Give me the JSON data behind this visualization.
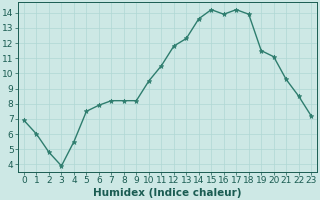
{
  "x": [
    0,
    1,
    2,
    3,
    4,
    5,
    6,
    7,
    8,
    9,
    10,
    11,
    12,
    13,
    14,
    15,
    16,
    17,
    18,
    19,
    20,
    21,
    22,
    23
  ],
  "y": [
    6.9,
    6.0,
    4.8,
    3.9,
    5.5,
    7.5,
    7.9,
    8.2,
    8.2,
    8.2,
    9.5,
    10.5,
    11.8,
    12.3,
    13.6,
    14.2,
    13.9,
    14.2,
    13.9,
    11.5,
    11.1,
    9.6,
    8.5,
    7.2
  ],
  "line_color": "#2e7d6e",
  "marker": "*",
  "marker_size": 3.5,
  "bg_color": "#cde8e5",
  "grid_color": "#b0d8d4",
  "xlabel": "Humidex (Indice chaleur)",
  "ylim": [
    3.5,
    14.7
  ],
  "xlim": [
    -0.5,
    23.5
  ],
  "yticks": [
    4,
    5,
    6,
    7,
    8,
    9,
    10,
    11,
    12,
    13,
    14
  ],
  "xticks": [
    0,
    1,
    2,
    3,
    4,
    5,
    6,
    7,
    8,
    9,
    10,
    11,
    12,
    13,
    14,
    15,
    16,
    17,
    18,
    19,
    20,
    21,
    22,
    23
  ],
  "tick_color": "#1a5c52",
  "xlabel_fontsize": 7.5,
  "tick_fontsize": 6.5,
  "spine_color": "#1a5c52",
  "linewidth": 1.0
}
